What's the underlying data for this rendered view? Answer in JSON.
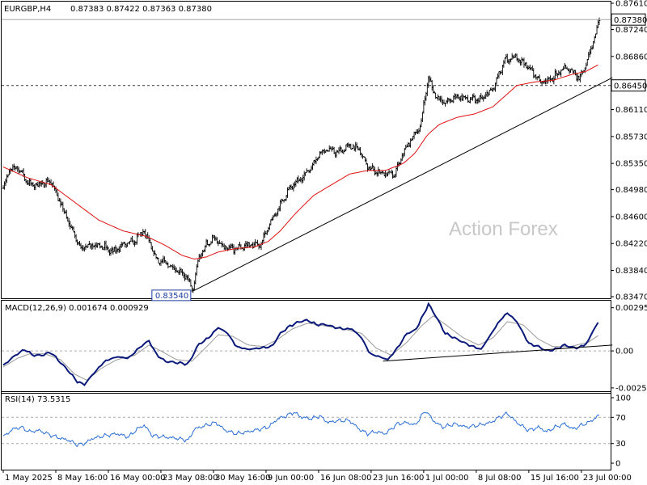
{
  "chart_data": {
    "type": "ohlc",
    "title": "EURGBP,H4",
    "quote": "0.87383 0.87422 0.87363 0.87380",
    "watermark": "Action Forex",
    "x_labels": [
      "1 May 2025",
      "8 May 16:00",
      "16 May 00:00",
      "23 May 08:00",
      "30 May 16:00",
      "9 Jun 00:00",
      "16 Jun 08:00",
      "23 Jun 16:00",
      "1 Jul 00:00",
      "8 Jul 08:00",
      "15 Jul 16:00",
      "23 Jul 00:00"
    ],
    "x_label_bars": [
      0,
      44,
      88,
      132,
      176,
      220,
      264,
      308,
      352,
      396,
      440,
      484
    ],
    "bar_count": 500,
    "price_panel": {
      "ylim": [
        0.8347,
        0.8761
      ],
      "y_ticks": [
        "0.87610",
        "0.87240",
        "0.86860",
        "0.86110",
        "0.85730",
        "0.85350",
        "0.84980",
        "0.84600",
        "0.84220",
        "0.83840",
        "0.83470"
      ],
      "current_price": 0.8738,
      "current_price_label": "0.87380",
      "level": 0.8645,
      "level_label": "0.86450",
      "low_label": "0.83540",
      "low_value": 0.8354,
      "low_bar": 159,
      "path_points": [
        [
          0,
          0.85
        ],
        [
          5,
          0.8525
        ],
        [
          12,
          0.853
        ],
        [
          22,
          0.8505
        ],
        [
          30,
          0.8505
        ],
        [
          40,
          0.851
        ],
        [
          50,
          0.847
        ],
        [
          58,
          0.844
        ],
        [
          65,
          0.8415
        ],
        [
          72,
          0.842
        ],
        [
          80,
          0.842
        ],
        [
          92,
          0.841
        ],
        [
          100,
          0.842
        ],
        [
          110,
          0.8425
        ],
        [
          117,
          0.844
        ],
        [
          122,
          0.8425
        ],
        [
          128,
          0.84
        ],
        [
          135,
          0.8395
        ],
        [
          145,
          0.8385
        ],
        [
          150,
          0.838
        ],
        [
          155,
          0.837
        ],
        [
          159,
          0.8356
        ],
        [
          163,
          0.8398
        ],
        [
          170,
          0.842
        ],
        [
          176,
          0.843
        ],
        [
          185,
          0.8415
        ],
        [
          195,
          0.8415
        ],
        [
          205,
          0.842
        ],
        [
          215,
          0.842
        ],
        [
          225,
          0.8455
        ],
        [
          233,
          0.848
        ],
        [
          240,
          0.85
        ],
        [
          250,
          0.8515
        ],
        [
          258,
          0.853
        ],
        [
          265,
          0.855
        ],
        [
          272,
          0.8555
        ],
        [
          280,
          0.855
        ],
        [
          290,
          0.856
        ],
        [
          298,
          0.8555
        ],
        [
          305,
          0.853
        ],
        [
          310,
          0.8525
        ],
        [
          320,
          0.852
        ],
        [
          328,
          0.852
        ],
        [
          335,
          0.855
        ],
        [
          342,
          0.857
        ],
        [
          350,
          0.859
        ],
        [
          352,
          0.862
        ],
        [
          356,
          0.8655
        ],
        [
          362,
          0.863
        ],
        [
          370,
          0.862
        ],
        [
          380,
          0.863
        ],
        [
          390,
          0.8625
        ],
        [
          400,
          0.8625
        ],
        [
          410,
          0.864
        ],
        [
          420,
          0.868
        ],
        [
          430,
          0.8685
        ],
        [
          440,
          0.867
        ],
        [
          450,
          0.865
        ],
        [
          460,
          0.8655
        ],
        [
          470,
          0.867
        ],
        [
          477,
          0.8665
        ],
        [
          482,
          0.8655
        ],
        [
          488,
          0.8675
        ],
        [
          493,
          0.87
        ],
        [
          496,
          0.872
        ],
        [
          499,
          0.8738
        ]
      ],
      "sma_points": [
        [
          0,
          0.853
        ],
        [
          20,
          0.8515
        ],
        [
          40,
          0.8505
        ],
        [
          60,
          0.848
        ],
        [
          80,
          0.8455
        ],
        [
          100,
          0.844
        ],
        [
          120,
          0.8432
        ],
        [
          135,
          0.842
        ],
        [
          150,
          0.8405
        ],
        [
          160,
          0.84
        ],
        [
          170,
          0.8403
        ],
        [
          180,
          0.841
        ],
        [
          195,
          0.8415
        ],
        [
          210,
          0.8417
        ],
        [
          222,
          0.8425
        ],
        [
          232,
          0.844
        ],
        [
          245,
          0.8465
        ],
        [
          260,
          0.849
        ],
        [
          275,
          0.8505
        ],
        [
          290,
          0.852
        ],
        [
          305,
          0.8525
        ],
        [
          320,
          0.8525
        ],
        [
          335,
          0.8535
        ],
        [
          345,
          0.855
        ],
        [
          355,
          0.8575
        ],
        [
          365,
          0.859
        ],
        [
          380,
          0.86
        ],
        [
          395,
          0.8605
        ],
        [
          410,
          0.8615
        ],
        [
          420,
          0.863
        ],
        [
          430,
          0.8645
        ],
        [
          445,
          0.865
        ],
        [
          460,
          0.8652
        ],
        [
          475,
          0.866
        ],
        [
          488,
          0.8665
        ],
        [
          499,
          0.8675
        ]
      ],
      "trendline": [
        [
          159,
          0.8355
        ],
        [
          510,
          0.8656
        ]
      ]
    },
    "macd_panel": {
      "label": "MACD(12,26,9) 0.001674 0.000929",
      "ylim": [
        -0.0027,
        0.0031
      ],
      "y_ticks": [
        "0.00295",
        "0.00",
        "-0.002529"
      ],
      "y_tick_values": [
        0.00295,
        0.0,
        -0.002529
      ],
      "macd_points": [
        [
          0,
          -0.001
        ],
        [
          10,
          -0.0003
        ],
        [
          18,
          0.0001
        ],
        [
          25,
          -0.0003
        ],
        [
          32,
          -0.0003
        ],
        [
          40,
          -0.0001
        ],
        [
          48,
          -0.0008
        ],
        [
          55,
          -0.0014
        ],
        [
          62,
          -0.0021
        ],
        [
          68,
          -0.0023
        ],
        [
          75,
          -0.0016
        ],
        [
          85,
          -0.0007
        ],
        [
          95,
          -0.0004
        ],
        [
          105,
          -0.0005
        ],
        [
          115,
          0.0003
        ],
        [
          122,
          0.0007
        ],
        [
          128,
          -0.0002
        ],
        [
          135,
          -0.0007
        ],
        [
          145,
          -0.0008
        ],
        [
          155,
          -0.0009
        ],
        [
          163,
          0.0004
        ],
        [
          172,
          0.0009
        ],
        [
          180,
          0.0016
        ],
        [
          188,
          0.0012
        ],
        [
          195,
          0.0003
        ],
        [
          205,
          0.0001
        ],
        [
          215,
          0.0002
        ],
        [
          225,
          0.0003
        ],
        [
          232,
          0.0012
        ],
        [
          240,
          0.0017
        ],
        [
          248,
          0.002
        ],
        [
          255,
          0.0021
        ],
        [
          262,
          0.0018
        ],
        [
          270,
          0.0018
        ],
        [
          278,
          0.0016
        ],
        [
          285,
          0.0015
        ],
        [
          292,
          0.0015
        ],
        [
          300,
          0.0009
        ],
        [
          307,
          -0.0002
        ],
        [
          315,
          -0.0004
        ],
        [
          322,
          -0.0006
        ],
        [
          330,
          0.0002
        ],
        [
          338,
          0.0012
        ],
        [
          345,
          0.0014
        ],
        [
          352,
          0.0025
        ],
        [
          356,
          0.0032
        ],
        [
          362,
          0.0024
        ],
        [
          370,
          0.0012
        ],
        [
          380,
          0.0008
        ],
        [
          390,
          0.0004
        ],
        [
          400,
          0.0001
        ],
        [
          408,
          0.0011
        ],
        [
          415,
          0.002
        ],
        [
          422,
          0.0026
        ],
        [
          430,
          0.002
        ],
        [
          440,
          0.0005
        ],
        [
          448,
          0.0003
        ],
        [
          455,
          0.0
        ],
        [
          462,
          0.0001
        ],
        [
          470,
          0.0004
        ],
        [
          478,
          0.0002
        ],
        [
          485,
          0.0003
        ],
        [
          490,
          0.0007
        ],
        [
          495,
          0.0016
        ],
        [
          499,
          0.002
        ]
      ],
      "signal_points": [
        [
          0,
          -0.0011
        ],
        [
          12,
          -0.0005
        ],
        [
          22,
          -0.0002
        ],
        [
          35,
          -0.0002
        ],
        [
          48,
          -0.0006
        ],
        [
          60,
          -0.0016
        ],
        [
          70,
          -0.002
        ],
        [
          82,
          -0.0012
        ],
        [
          95,
          -0.0006
        ],
        [
          110,
          -0.0003
        ],
        [
          122,
          0.0004
        ],
        [
          132,
          0.0
        ],
        [
          145,
          -0.0006
        ],
        [
          158,
          -0.0007
        ],
        [
          168,
          0.0001
        ],
        [
          180,
          0.0011
        ],
        [
          192,
          0.001
        ],
        [
          205,
          0.0004
        ],
        [
          218,
          0.0003
        ],
        [
          230,
          0.0008
        ],
        [
          242,
          0.0015
        ],
        [
          255,
          0.0019
        ],
        [
          270,
          0.0017
        ],
        [
          285,
          0.0015
        ],
        [
          300,
          0.0012
        ],
        [
          312,
          0.0002
        ],
        [
          325,
          -0.0003
        ],
        [
          338,
          0.0006
        ],
        [
          350,
          0.0017
        ],
        [
          360,
          0.0024
        ],
        [
          372,
          0.0017
        ],
        [
          385,
          0.0009
        ],
        [
          398,
          0.0004
        ],
        [
          410,
          0.0009
        ],
        [
          422,
          0.002
        ],
        [
          435,
          0.0018
        ],
        [
          448,
          0.0008
        ],
        [
          460,
          0.0003
        ],
        [
          475,
          0.0003
        ],
        [
          490,
          0.0006
        ],
        [
          499,
          0.0011
        ]
      ],
      "trendline": [
        [
          318,
          -0.0007
        ],
        [
          510,
          0.0004
        ]
      ]
    },
    "rsi_panel": {
      "label": "RSI(14) 73.5315",
      "ylim": [
        0,
        100
      ],
      "y_ticks": [
        "100",
        "70",
        "30",
        "0"
      ],
      "y_tick_values": [
        100,
        70,
        30,
        0
      ],
      "rsi_points": [
        [
          0,
          40
        ],
        [
          8,
          52
        ],
        [
          15,
          55
        ],
        [
          22,
          48
        ],
        [
          30,
          50
        ],
        [
          38,
          44
        ],
        [
          48,
          38
        ],
        [
          55,
          35
        ],
        [
          62,
          28
        ],
        [
          68,
          30
        ],
        [
          75,
          38
        ],
        [
          85,
          42
        ],
        [
          95,
          45
        ],
        [
          105,
          40
        ],
        [
          112,
          52
        ],
        [
          118,
          58
        ],
        [
          125,
          42
        ],
        [
          135,
          40
        ],
        [
          145,
          38
        ],
        [
          155,
          35
        ],
        [
          160,
          52
        ],
        [
          170,
          58
        ],
        [
          178,
          62
        ],
        [
          186,
          50
        ],
        [
          195,
          45
        ],
        [
          205,
          48
        ],
        [
          215,
          52
        ],
        [
          222,
          55
        ],
        [
          230,
          68
        ],
        [
          237,
          72
        ],
        [
          243,
          78
        ],
        [
          250,
          70
        ],
        [
          258,
          68
        ],
        [
          265,
          72
        ],
        [
          272,
          62
        ],
        [
          280,
          65
        ],
        [
          290,
          65
        ],
        [
          298,
          52
        ],
        [
          305,
          45
        ],
        [
          312,
          48
        ],
        [
          320,
          45
        ],
        [
          330,
          60
        ],
        [
          338,
          62
        ],
        [
          345,
          58
        ],
        [
          350,
          72
        ],
        [
          354,
          80
        ],
        [
          360,
          65
        ],
        [
          368,
          55
        ],
        [
          378,
          60
        ],
        [
          388,
          55
        ],
        [
          398,
          58
        ],
        [
          408,
          62
        ],
        [
          415,
          70
        ],
        [
          422,
          76
        ],
        [
          430,
          62
        ],
        [
          440,
          50
        ],
        [
          448,
          55
        ],
        [
          455,
          48
        ],
        [
          462,
          55
        ],
        [
          470,
          60
        ],
        [
          477,
          52
        ],
        [
          484,
          58
        ],
        [
          490,
          62
        ],
        [
          495,
          68
        ],
        [
          499,
          73.5
        ]
      ]
    }
  }
}
